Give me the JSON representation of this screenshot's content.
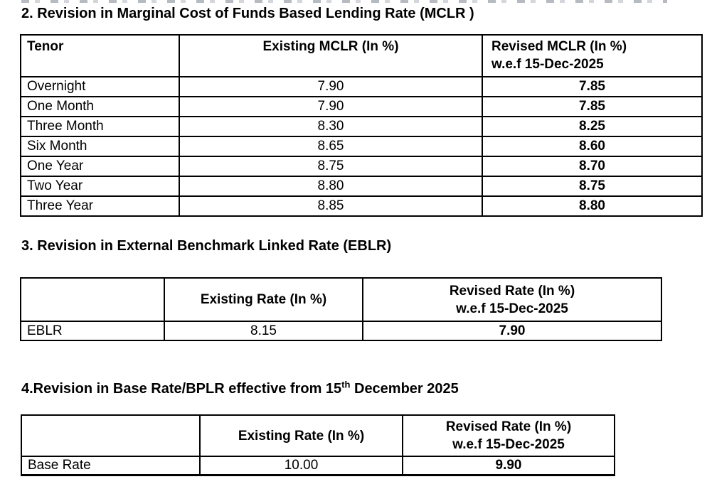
{
  "sections": [
    {
      "id": "mclr",
      "heading": "2. Revision in Marginal Cost of Funds Based Lending Rate (MCLR )",
      "table": {
        "col1_header": "Tenor",
        "col2_header": "Existing MCLR (In %)",
        "col3_header_line1": "Revised MCLR (In %)",
        "col3_header_line2": "w.e.f 15-Dec-2025",
        "rows": [
          {
            "tenor": "Overnight",
            "existing": "7.90",
            "revised": "7.85"
          },
          {
            "tenor": "One Month",
            "existing": "7.90",
            "revised": "7.85"
          },
          {
            "tenor": "Three Month",
            "existing": "8.30",
            "revised": "8.25"
          },
          {
            "tenor": "Six Month",
            "existing": "8.65",
            "revised": "8.60"
          },
          {
            "tenor": "One Year",
            "existing": "8.75",
            "revised": "8.70"
          },
          {
            "tenor": "Two Year",
            "existing": "8.80",
            "revised": "8.75"
          },
          {
            "tenor": "Three Year",
            "existing": "8.85",
            "revised": "8.80"
          }
        ]
      }
    },
    {
      "id": "eblr",
      "heading": "3. Revision in External Benchmark Linked Rate (EBLR)",
      "table": {
        "col1_header": "",
        "col2_header": "Existing Rate (In %)",
        "col3_header_line1": "Revised Rate (In %)",
        "col3_header_line2": "w.e.f 15-Dec-2025",
        "rows": [
          {
            "label": "EBLR",
            "existing": "8.15",
            "revised": "7.90"
          }
        ]
      }
    },
    {
      "id": "base_rate",
      "heading_parts": {
        "before": "4.Revision in Base Rate/BPLR effective from 15",
        "superscript": "th",
        "after": " December 2025"
      },
      "table": {
        "col1_header": "",
        "col2_header": "Existing Rate (In %)",
        "col3_header_line1": "Revised Rate (In %)",
        "col3_header_line2": "w.e.f 15-Dec-2025",
        "rows": [
          {
            "label": "Base Rate",
            "existing": "10.00",
            "revised": "9.90"
          }
        ]
      }
    }
  ],
  "colors": {
    "text": "#000000",
    "border": "#000000",
    "background": "#ffffff"
  }
}
